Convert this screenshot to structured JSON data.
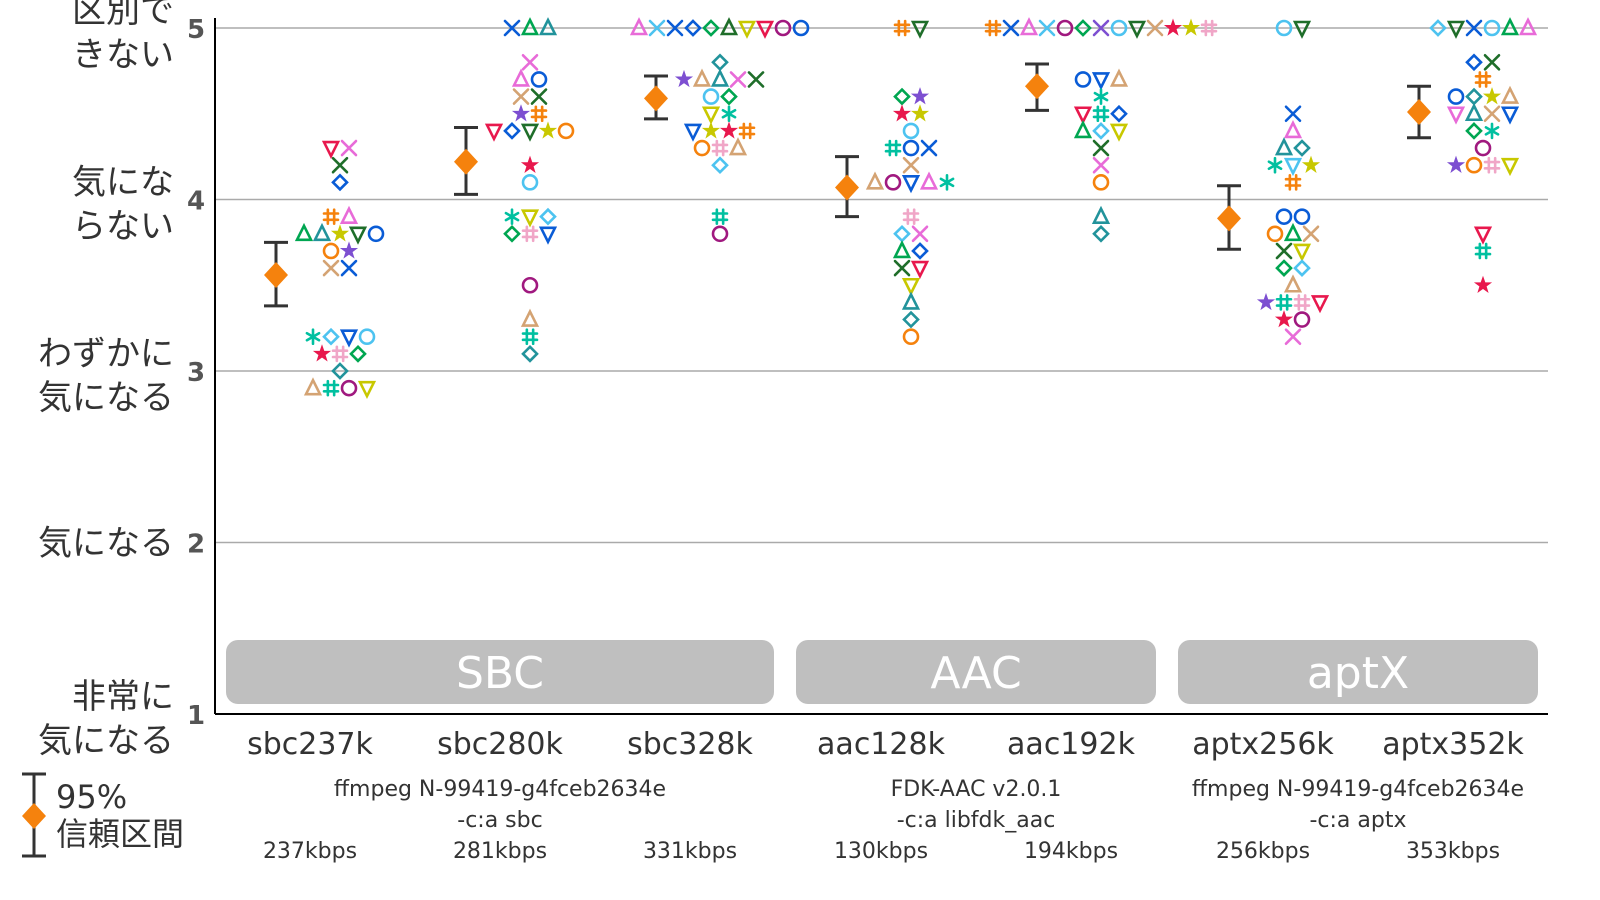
{
  "chart_data": {
    "type": "scatter",
    "title": "",
    "ylim": [
      1,
      5
    ],
    "y_axis": {
      "ticks": [
        {
          "value": 5,
          "label": "5",
          "text": [
            "区別で",
            "きない"
          ]
        },
        {
          "value": 4,
          "label": "4",
          "text": [
            "気にな",
            "らない"
          ]
        },
        {
          "value": 3,
          "label": "3",
          "text": [
            "わずかに",
            "気になる"
          ]
        },
        {
          "value": 2,
          "label": "2",
          "text": [
            "気になる"
          ]
        },
        {
          "value": 1,
          "label": "1",
          "text": [
            "非常に",
            "気になる"
          ]
        }
      ]
    },
    "grid": "horizontal",
    "categories": [
      "sbc237k",
      "sbc280k",
      "sbc328k",
      "aac128k",
      "aac192k",
      "aptx256k",
      "aptx352k"
    ],
    "groups": [
      {
        "label": "SBC",
        "categories": [
          "sbc237k",
          "sbc280k",
          "sbc328k"
        ]
      },
      {
        "label": "AAC",
        "categories": [
          "aac128k",
          "aac192k"
        ]
      },
      {
        "label": "aptX",
        "categories": [
          "aptx256k",
          "aptx352k"
        ]
      }
    ],
    "encoders": [
      {
        "lines": [
          "ffmpeg N-99419-g4fceb2634e",
          "-c:a sbc"
        ]
      },
      {
        "lines": [
          "FDK-AAC v2.0.1",
          "-c:a libfdk_aac"
        ]
      },
      {
        "lines": [
          "ffmpeg N-99419-g4fceb2634e",
          "-c:a aptx"
        ]
      }
    ],
    "bitrates": [
      "237kbps",
      "281kbps",
      "331kbps",
      "130kbps",
      "194kbps",
      "256kbps",
      "353kbps"
    ],
    "mean": [
      3.56,
      4.22,
      4.59,
      4.07,
      4.66,
      3.89,
      4.51
    ],
    "ci_low": [
      3.38,
      4.03,
      4.47,
      3.9,
      4.52,
      3.71,
      4.36
    ],
    "ci_high": [
      3.75,
      4.42,
      4.72,
      4.25,
      4.79,
      4.08,
      4.66
    ],
    "legend": {
      "line1": "95%",
      "line2": "信頼区間"
    },
    "mean_color": "#f5820d",
    "ci_color": "#333333",
    "listener_colors": [
      "#f5820d",
      "#0a5cd6",
      "#e86bd8",
      "#00a651",
      "#00c0a0",
      "#4dc3f0",
      "#d4a373",
      "#22939b",
      "#7d3c98",
      "#c8c800",
      "#e8184d",
      "#7d4fd1",
      "#1f6e2a",
      "#f0a6c7",
      "#a0197f"
    ],
    "listener_markers": [
      "o",
      "x",
      "triangle",
      "diamond",
      "triangle-down",
      "star",
      "hash",
      "asterisk",
      "hash-flat"
    ],
    "points": [
      [
        [
          3.8,
          "triangle",
          "#00a651"
        ],
        [
          4.3,
          "triangle-down",
          "#e8184d"
        ],
        [
          4.3,
          "x",
          "#e86bd8"
        ],
        [
          4.2,
          "x",
          "#1f6e2a"
        ],
        [
          4.1,
          "diamond",
          "#0a5cd6"
        ],
        [
          3.9,
          "hash",
          "#f5820d"
        ],
        [
          3.9,
          "triangle",
          "#e86bd8"
        ],
        [
          3.8,
          "triangle",
          "#22939b"
        ],
        [
          3.8,
          "star",
          "#c8c800"
        ],
        [
          3.8,
          "triangle-down",
          "#1f6e2a"
        ],
        [
          3.8,
          "o",
          "#0a5cd6"
        ],
        [
          3.7,
          "o",
          "#f5820d"
        ],
        [
          3.7,
          "star",
          "#7d4fd1"
        ],
        [
          3.6,
          "x",
          "#d4a373"
        ],
        [
          3.6,
          "x",
          "#0a5cd6"
        ],
        [
          3.2,
          "asterisk",
          "#00c0a0"
        ],
        [
          3.2,
          "diamond",
          "#4dc3f0"
        ],
        [
          3.2,
          "triangle-down",
          "#0a5cd6"
        ],
        [
          3.2,
          "o",
          "#4dc3f0"
        ],
        [
          3.1,
          "star",
          "#e8184d"
        ],
        [
          3.1,
          "hash",
          "#f0a6c7"
        ],
        [
          3.1,
          "diamond",
          "#00a651"
        ],
        [
          3.0,
          "diamond",
          "#22939b"
        ],
        [
          2.9,
          "triangle",
          "#d4a373"
        ],
        [
          2.9,
          "hash",
          "#00c0a0"
        ],
        [
          2.9,
          "o",
          "#a0197f"
        ],
        [
          2.9,
          "triangle-down",
          "#c8c800"
        ]
      ],
      [
        [
          5.0,
          "x",
          "#0a5cd6"
        ],
        [
          5.0,
          "triangle",
          "#00a651"
        ],
        [
          5.0,
          "triangle",
          "#22939b"
        ],
        [
          4.8,
          "x",
          "#e86bd8"
        ],
        [
          4.7,
          "triangle",
          "#e86bd8"
        ],
        [
          4.7,
          "o",
          "#0a5cd6"
        ],
        [
          4.6,
          "x",
          "#d4a373"
        ],
        [
          4.6,
          "x",
          "#1f6e2a"
        ],
        [
          4.5,
          "star",
          "#7d4fd1"
        ],
        [
          4.5,
          "hash",
          "#f5820d"
        ],
        [
          4.4,
          "triangle-down",
          "#e8184d"
        ],
        [
          4.4,
          "diamond",
          "#0a5cd6"
        ],
        [
          4.4,
          "triangle-down",
          "#1f6e2a"
        ],
        [
          4.4,
          "star",
          "#c8c800"
        ],
        [
          4.4,
          "o",
          "#f5820d"
        ],
        [
          4.2,
          "star",
          "#e8184d"
        ],
        [
          4.1,
          "o",
          "#4dc3f0"
        ],
        [
          3.9,
          "asterisk",
          "#00c0a0"
        ],
        [
          3.9,
          "triangle-down",
          "#c8c800"
        ],
        [
          3.9,
          "diamond",
          "#4dc3f0"
        ],
        [
          3.8,
          "diamond",
          "#00a651"
        ],
        [
          3.8,
          "hash",
          "#f0a6c7"
        ],
        [
          3.8,
          "triangle-down",
          "#0a5cd6"
        ],
        [
          3.5,
          "o",
          "#a0197f"
        ],
        [
          3.3,
          "triangle",
          "#d4a373"
        ],
        [
          3.2,
          "hash",
          "#00c0a0"
        ],
        [
          3.1,
          "diamond",
          "#22939b"
        ]
      ],
      [
        [
          5.0,
          "triangle",
          "#e86bd8"
        ],
        [
          5.0,
          "x",
          "#4dc3f0"
        ],
        [
          5.0,
          "x",
          "#0a5cd6"
        ],
        [
          5.0,
          "diamond",
          "#0a5cd6"
        ],
        [
          5.0,
          "diamond",
          "#00a651"
        ],
        [
          5.0,
          "triangle",
          "#1f6e2a"
        ],
        [
          5.0,
          "triangle-down",
          "#c8c800"
        ],
        [
          5.0,
          "triangle-down",
          "#e8184d"
        ],
        [
          5.0,
          "o",
          "#a0197f"
        ],
        [
          5.0,
          "o",
          "#0a5cd6"
        ],
        [
          4.8,
          "diamond",
          "#22939b"
        ],
        [
          4.7,
          "star",
          "#7d4fd1"
        ],
        [
          4.7,
          "triangle",
          "#d4a373"
        ],
        [
          4.7,
          "triangle",
          "#22939b"
        ],
        [
          4.7,
          "x",
          "#e86bd8"
        ],
        [
          4.7,
          "x",
          "#1f6e2a"
        ],
        [
          4.6,
          "o",
          "#4dc3f0"
        ],
        [
          4.6,
          "diamond",
          "#00a651"
        ],
        [
          4.5,
          "triangle-down",
          "#c8c800"
        ],
        [
          4.5,
          "asterisk",
          "#00c0a0"
        ],
        [
          4.4,
          "triangle-down",
          "#0a5cd6"
        ],
        [
          4.4,
          "star",
          "#c8c800"
        ],
        [
          4.4,
          "star",
          "#e8184d"
        ],
        [
          4.4,
          "hash",
          "#f5820d"
        ],
        [
          4.3,
          "o",
          "#f5820d"
        ],
        [
          4.3,
          "hash",
          "#f0a6c7"
        ],
        [
          4.3,
          "triangle",
          "#d4a373"
        ],
        [
          4.2,
          "diamond",
          "#4dc3f0"
        ],
        [
          3.9,
          "hash",
          "#00c0a0"
        ],
        [
          3.8,
          "o",
          "#a0197f"
        ]
      ],
      [
        [
          5.0,
          "hash",
          "#f5820d"
        ],
        [
          5.0,
          "triangle-down",
          "#1f6e2a"
        ],
        [
          4.6,
          "diamond",
          "#00a651"
        ],
        [
          4.6,
          "star",
          "#7d4fd1"
        ],
        [
          4.5,
          "star",
          "#e8184d"
        ],
        [
          4.5,
          "star",
          "#c8c800"
        ],
        [
          4.4,
          "o",
          "#4dc3f0"
        ],
        [
          4.3,
          "hash",
          "#00c0a0"
        ],
        [
          4.3,
          "o",
          "#0a5cd6"
        ],
        [
          4.3,
          "x",
          "#0a5cd6"
        ],
        [
          4.2,
          "x",
          "#d4a373"
        ],
        [
          4.1,
          "triangle",
          "#d4a373"
        ],
        [
          4.1,
          "o",
          "#a0197f"
        ],
        [
          4.1,
          "triangle-down",
          "#0a5cd6"
        ],
        [
          4.1,
          "triangle",
          "#e86bd8"
        ],
        [
          4.1,
          "asterisk",
          "#00c0a0"
        ],
        [
          3.9,
          "hash",
          "#f0a6c7"
        ],
        [
          3.8,
          "diamond",
          "#4dc3f0"
        ],
        [
          3.8,
          "x",
          "#e86bd8"
        ],
        [
          3.7,
          "triangle",
          "#00a651"
        ],
        [
          3.7,
          "diamond",
          "#0a5cd6"
        ],
        [
          3.6,
          "x",
          "#1f6e2a"
        ],
        [
          3.6,
          "triangle-down",
          "#e8184d"
        ],
        [
          3.5,
          "triangle-down",
          "#c8c800"
        ],
        [
          3.4,
          "triangle",
          "#22939b"
        ],
        [
          3.3,
          "diamond",
          "#22939b"
        ],
        [
          3.2,
          "o",
          "#f5820d"
        ]
      ],
      [
        [
          5.0,
          "hash",
          "#f5820d"
        ],
        [
          5.0,
          "x",
          "#0a5cd6"
        ],
        [
          5.0,
          "triangle",
          "#e86bd8"
        ],
        [
          5.0,
          "x",
          "#4dc3f0"
        ],
        [
          5.0,
          "o",
          "#a0197f"
        ],
        [
          5.0,
          "diamond",
          "#00a651"
        ],
        [
          5.0,
          "x",
          "#7d4fd1"
        ],
        [
          5.0,
          "o",
          "#4dc3f0"
        ],
        [
          5.0,
          "triangle-down",
          "#1f6e2a"
        ],
        [
          5.0,
          "x",
          "#d4a373"
        ],
        [
          5.0,
          "star",
          "#e8184d"
        ],
        [
          5.0,
          "star",
          "#c8c800"
        ],
        [
          5.0,
          "hash",
          "#f0a6c7"
        ],
        [
          4.7,
          "o",
          "#0a5cd6"
        ],
        [
          4.7,
          "triangle-down",
          "#0a5cd6"
        ],
        [
          4.7,
          "triangle",
          "#d4a373"
        ],
        [
          4.6,
          "asterisk",
          "#00c0a0"
        ],
        [
          4.5,
          "triangle-down",
          "#e8184d"
        ],
        [
          4.5,
          "hash",
          "#00c0a0"
        ],
        [
          4.5,
          "diamond",
          "#0a5cd6"
        ],
        [
          4.4,
          "triangle",
          "#00a651"
        ],
        [
          4.4,
          "diamond",
          "#4dc3f0"
        ],
        [
          4.4,
          "triangle-down",
          "#c8c800"
        ],
        [
          4.3,
          "x",
          "#1f6e2a"
        ],
        [
          4.2,
          "x",
          "#e86bd8"
        ],
        [
          4.1,
          "o",
          "#f5820d"
        ],
        [
          3.9,
          "triangle",
          "#22939b"
        ],
        [
          3.8,
          "diamond",
          "#22939b"
        ]
      ],
      [
        [
          5.0,
          "o",
          "#4dc3f0"
        ],
        [
          5.0,
          "triangle-down",
          "#1f6e2a"
        ],
        [
          4.5,
          "x",
          "#0a5cd6"
        ],
        [
          4.4,
          "triangle",
          "#e86bd8"
        ],
        [
          4.3,
          "triangle",
          "#22939b"
        ],
        [
          4.3,
          "diamond",
          "#22939b"
        ],
        [
          4.2,
          "asterisk",
          "#00c0a0"
        ],
        [
          4.2,
          "triangle-down",
          "#4dc3f0"
        ],
        [
          4.2,
          "star",
          "#c8c800"
        ],
        [
          4.1,
          "hash",
          "#f5820d"
        ],
        [
          3.9,
          "o",
          "#0a5cd6"
        ],
        [
          3.9,
          "o",
          "#0a5cd6"
        ],
        [
          3.8,
          "o",
          "#f5820d"
        ],
        [
          3.8,
          "triangle",
          "#00a651"
        ],
        [
          3.8,
          "x",
          "#d4a373"
        ],
        [
          3.7,
          "x",
          "#1f6e2a"
        ],
        [
          3.7,
          "triangle-down",
          "#c8c800"
        ],
        [
          3.6,
          "diamond",
          "#00a651"
        ],
        [
          3.6,
          "diamond",
          "#4dc3f0"
        ],
        [
          3.5,
          "triangle",
          "#d4a373"
        ],
        [
          3.4,
          "star",
          "#7d4fd1"
        ],
        [
          3.4,
          "hash",
          "#00c0a0"
        ],
        [
          3.4,
          "hash",
          "#f0a6c7"
        ],
        [
          3.4,
          "triangle-down",
          "#e8184d"
        ],
        [
          3.3,
          "star",
          "#e8184d"
        ],
        [
          3.3,
          "o",
          "#a0197f"
        ],
        [
          3.2,
          "x",
          "#e86bd8"
        ]
      ],
      [
        [
          5.0,
          "diamond",
          "#4dc3f0"
        ],
        [
          5.0,
          "triangle-down",
          "#1f6e2a"
        ],
        [
          5.0,
          "x",
          "#0a5cd6"
        ],
        [
          5.0,
          "o",
          "#4dc3f0"
        ],
        [
          5.0,
          "triangle",
          "#00a651"
        ],
        [
          5.0,
          "triangle",
          "#e86bd8"
        ],
        [
          4.8,
          "diamond",
          "#0a5cd6"
        ],
        [
          4.8,
          "x",
          "#1f6e2a"
        ],
        [
          4.7,
          "hash",
          "#f5820d"
        ],
        [
          4.6,
          "o",
          "#0a5cd6"
        ],
        [
          4.6,
          "diamond",
          "#22939b"
        ],
        [
          4.6,
          "star",
          "#c8c800"
        ],
        [
          4.6,
          "triangle",
          "#d4a373"
        ],
        [
          4.5,
          "triangle-down",
          "#e86bd8"
        ],
        [
          4.5,
          "triangle",
          "#22939b"
        ],
        [
          4.5,
          "x",
          "#d4a373"
        ],
        [
          4.5,
          "triangle-down",
          "#0a5cd6"
        ],
        [
          4.4,
          "diamond",
          "#00a651"
        ],
        [
          4.4,
          "asterisk",
          "#00c0a0"
        ],
        [
          4.3,
          "o",
          "#a0197f"
        ],
        [
          4.2,
          "star",
          "#7d4fd1"
        ],
        [
          4.2,
          "o",
          "#f5820d"
        ],
        [
          4.2,
          "hash",
          "#f0a6c7"
        ],
        [
          4.2,
          "triangle-down",
          "#c8c800"
        ],
        [
          3.8,
          "triangle-down",
          "#e8184d"
        ],
        [
          3.7,
          "hash",
          "#00c0a0"
        ],
        [
          3.5,
          "star",
          "#e8184d"
        ]
      ]
    ]
  }
}
